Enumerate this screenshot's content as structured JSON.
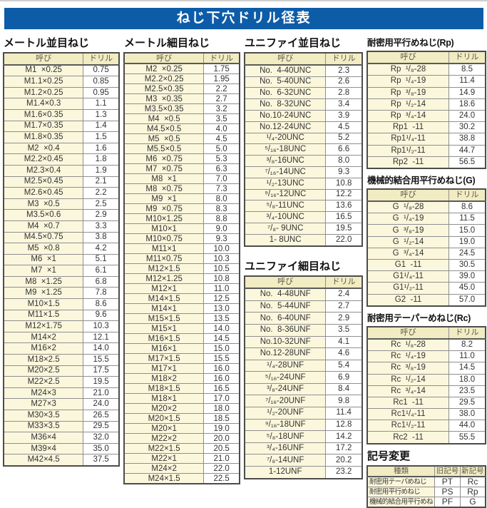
{
  "page": {
    "title": "ねじ下穴ドリル径表",
    "corner_mark": "--"
  },
  "col_headers": [
    "呼び",
    "ドリル"
  ],
  "sections": {
    "metric_coarse": {
      "heading": "メートル並目ねじ",
      "rows": [
        [
          "M1  ×0.25",
          "0.75"
        ],
        [
          "M1.1×0.25",
          "0.85"
        ],
        [
          "M1.2×0.25",
          "0.95"
        ],
        [
          "M1.4×0.3",
          "1.1"
        ],
        [
          "M1.6×0.35",
          "1.3"
        ],
        [
          "M1.7×0.35",
          "1.4"
        ],
        [
          "M1.8×0.35",
          "1.5"
        ],
        [
          "M2  ×0.4",
          "1.6"
        ],
        [
          "M2.2×0.45",
          "1.8"
        ],
        [
          "M2.3×0.4",
          "1.9"
        ],
        [
          "M2.5×0.45",
          "2.1"
        ],
        [
          "M2.6×0.45",
          "2.2"
        ],
        [
          "M3  ×0.5",
          "2.5"
        ],
        [
          "M3.5×0.6",
          "2.9"
        ],
        [
          "M4  ×0.7",
          "3.3"
        ],
        [
          "M4.5×0.75",
          "3.8"
        ],
        [
          "M5  ×0.8",
          "4.2"
        ],
        [
          "M6  ×1",
          "5.1"
        ],
        [
          "M7  ×1",
          "6.1"
        ],
        [
          "M8  ×1.25",
          "6.8"
        ],
        [
          "M9  ×1.25",
          "7.8"
        ],
        [
          "M10×1.5",
          "8.6"
        ],
        [
          "M11×1.5",
          "9.6"
        ],
        [
          "M12×1.75",
          "10.3"
        ],
        [
          "M14×2",
          "12.1"
        ],
        [
          "M16×2",
          "14.0"
        ],
        [
          "M18×2.5",
          "15.5"
        ],
        [
          "M20×2.5",
          "17.5"
        ],
        [
          "M22×2.5",
          "19.5"
        ],
        [
          "M24×3",
          "21.0"
        ],
        [
          "M27×3",
          "24.0"
        ],
        [
          "M30×3.5",
          "26.5"
        ],
        [
          "M33×3.5",
          "29.5"
        ],
        [
          "M36×4",
          "32.0"
        ],
        [
          "M39×4",
          "35.0"
        ],
        [
          "M42×4.5",
          "37.5"
        ]
      ]
    },
    "metric_fine": {
      "heading": "メートル細目ねじ",
      "rows": [
        [
          "M2  ×0.25",
          "1.75"
        ],
        [
          "M2.2×0.25",
          "1.95"
        ],
        [
          "M2.5×0.35",
          "2.2"
        ],
        [
          "M3  ×0.35",
          "2.7"
        ],
        [
          "M3.5×0.35",
          "3.2"
        ],
        [
          "M4  ×0.5",
          "3.5"
        ],
        [
          "M4.5×0.5",
          "4.0"
        ],
        [
          "M5  ×0.5",
          "4.5"
        ],
        [
          "M5.5×0.5",
          "5.0"
        ],
        [
          "M6  ×0.75",
          "5.3"
        ],
        [
          "M7  ×0.75",
          "6.3"
        ],
        [
          "M8  ×1",
          "7.0"
        ],
        [
          "M8  ×0.75",
          "7.3"
        ],
        [
          "M9  ×1",
          "8.0"
        ],
        [
          "M9  ×0.75",
          "8.3"
        ],
        [
          "M10×1.25",
          "8.8"
        ],
        [
          "M10×1",
          "9.0"
        ],
        [
          "M10×0.75",
          "9.3"
        ],
        [
          "M11×1",
          "10.0"
        ],
        [
          "M11×0.75",
          "10.3"
        ],
        [
          "M12×1.5",
          "10.5"
        ],
        [
          "M12×1.25",
          "10.8"
        ],
        [
          "M12×1",
          "11.0"
        ],
        [
          "M14×1.5",
          "12.5"
        ],
        [
          "M14×1",
          "13.0"
        ],
        [
          "M15×1.5",
          "13.5"
        ],
        [
          "M15×1",
          "14.0"
        ],
        [
          "M16×1.5",
          "14.5"
        ],
        [
          "M16×1",
          "15.0"
        ],
        [
          "M17×1.5",
          "15.5"
        ],
        [
          "M17×1",
          "16.0"
        ],
        [
          "M18×2",
          "16.0"
        ],
        [
          "M18×1.5",
          "16.5"
        ],
        [
          "M18×1",
          "17.0"
        ],
        [
          "M20×2",
          "18.0"
        ],
        [
          "M20×1.5",
          "18.5"
        ],
        [
          "M20×1",
          "19.0"
        ],
        [
          "M22×2",
          "20.0"
        ],
        [
          "M22×1.5",
          "20.5"
        ],
        [
          "M22×1",
          "21.0"
        ],
        [
          "M24×2",
          "22.0"
        ],
        [
          "M24×1.5",
          "22.5"
        ]
      ]
    },
    "unified_coarse": {
      "heading": "ユニファイ並目ねじ",
      "rows": [
        [
          "No.  4-40UNC",
          "2.3"
        ],
        [
          "No.  5-40UNC",
          "2.6"
        ],
        [
          "No.  6-32UNC",
          "2.8"
        ],
        [
          "No.  8-32UNC",
          "3.4"
        ],
        [
          "No.10-24UNC",
          "3.9"
        ],
        [
          "No.12-24UNC",
          "4.5"
        ],
        [
          "¹/₄-20UNC",
          "5.2"
        ],
        [
          "⁵/₁₆-18UNC",
          "6.6"
        ],
        [
          "³/₈-16UNC",
          "8.0"
        ],
        [
          "⁷/₁₆-14UNC",
          "9.3"
        ],
        [
          "¹/₂-13UNC",
          "10.8"
        ],
        [
          "⁹/₁₆-12UNC",
          "12.2"
        ],
        [
          "⁵/₈-11UNC",
          "13.6"
        ],
        [
          "³/₄-10UNC",
          "16.5"
        ],
        [
          "⁷/₈- 9UNC",
          "19.5"
        ],
        [
          "1- 8UNC",
          "22.0"
        ]
      ]
    },
    "unified_fine": {
      "heading": "ユニファイ細目ねじ",
      "rows": [
        [
          "No.  4-48UNF",
          "2.4"
        ],
        [
          "No.  5-44UNF",
          "2.7"
        ],
        [
          "No.  6-40UNF",
          "2.9"
        ],
        [
          "No.  8-36UNF",
          "3.5"
        ],
        [
          "No.10-32UNF",
          "4.1"
        ],
        [
          "No.12-28UNF",
          "4.6"
        ],
        [
          "¹/₄-28UNF",
          "5.4"
        ],
        [
          "⁵/₁₆-24UNF",
          "6.9"
        ],
        [
          "³/₈-24UNF",
          "8.4"
        ],
        [
          "⁷/₁₆-20UNF",
          "9.8"
        ],
        [
          "¹/₂-20UNF",
          "11.4"
        ],
        [
          "⁹/₁₆-18UNF",
          "12.8"
        ],
        [
          "⁵/₈-18UNF",
          "14.2"
        ],
        [
          "³/₄-16UNF",
          "17.2"
        ],
        [
          "⁷/₈-14UNF",
          "20.2"
        ],
        [
          "1-12UNF",
          "23.2"
        ]
      ]
    },
    "rp": {
      "heading": "耐密用平行めねじ(Rp)",
      "rows": [
        [
          "Rp  ¹/₈-28",
          "8.5"
        ],
        [
          "Rp  ¹/₄-19",
          "11.4"
        ],
        [
          "Rp  ³/₈-19",
          "14.9"
        ],
        [
          "Rp  ¹/₂-14",
          "18.6"
        ],
        [
          "Rp  ³/₄-14",
          "24.0"
        ],
        [
          "Rp1  -11",
          "30.2"
        ],
        [
          "Rp1¹/₄-11",
          "38.8"
        ],
        [
          "Rp1¹/₂-11",
          "44.7"
        ],
        [
          "Rp2  -11",
          "56.5"
        ]
      ]
    },
    "g": {
      "heading": "機械的結合用平行めねじ(G)",
      "rows": [
        [
          "G  ¹/₈-28",
          "8.6"
        ],
        [
          "G  ¹/₄-19",
          "11.5"
        ],
        [
          "G  ³/₈-19",
          "15.0"
        ],
        [
          "G  ¹/₂-14",
          "19.0"
        ],
        [
          "G  ³/₄-14",
          "24.5"
        ],
        [
          "G1  -11",
          "30.5"
        ],
        [
          "G1¹/₄-11",
          "39.0"
        ],
        [
          "G1¹/₂-11",
          "45.0"
        ],
        [
          "G2  -11",
          "57.0"
        ]
      ]
    },
    "rc": {
      "heading": "耐密用テーパーめねじ(Rc)",
      "rows": [
        [
          "Rc  ¹/₈-28",
          "8.2"
        ],
        [
          "Rc  ¹/₄-19",
          "11.0"
        ],
        [
          "Rc  ³/₈-19",
          "14.5"
        ],
        [
          "Rc  ¹/₂-14",
          "18.0"
        ],
        [
          "Rc  ³/₄-14",
          "23.5"
        ],
        [
          "Rc1  -11",
          "29.5"
        ],
        [
          "Rc1¹/₄-11",
          "38.0"
        ],
        [
          "Rc1¹/₂-11",
          "44.0"
        ],
        [
          "Rc2  -11",
          "55.5"
        ]
      ]
    },
    "symbol_change": {
      "heading": "記号変更",
      "headers": [
        "種類",
        "旧記号",
        "新記号"
      ],
      "rows": [
        [
          "耐密用テーパめねじ",
          "PT",
          "Rc"
        ],
        [
          "耐密用平行めねじ",
          "PS",
          "Rp"
        ],
        [
          "機械的結合用平行めねじ",
          "PF",
          "G"
        ]
      ]
    }
  }
}
